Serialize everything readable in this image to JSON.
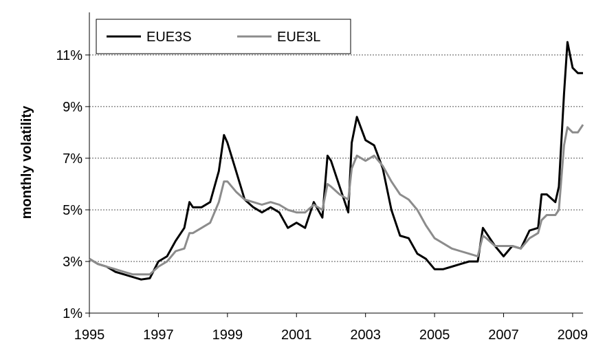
{
  "chart_data": {
    "type": "line",
    "y_label": "monthly volatility",
    "x": [
      1995.0,
      1995.25,
      1995.5,
      1995.75,
      1996.0,
      1996.25,
      1996.5,
      1996.75,
      1997.0,
      1997.25,
      1997.5,
      1997.75,
      1997.9,
      1998.0,
      1998.25,
      1998.5,
      1998.75,
      1998.9,
      1999.0,
      1999.25,
      1999.5,
      1999.75,
      2000.0,
      2000.25,
      2000.5,
      2000.75,
      2001.0,
      2001.25,
      2001.5,
      2001.75,
      2001.9,
      2002.0,
      2002.25,
      2002.5,
      2002.6,
      2002.75,
      2003.0,
      2003.25,
      2003.5,
      2003.75,
      2004.0,
      2004.25,
      2004.5,
      2004.75,
      2005.0,
      2005.25,
      2005.5,
      2005.75,
      2006.0,
      2006.25,
      2006.4,
      2006.5,
      2006.75,
      2007.0,
      2007.25,
      2007.5,
      2007.75,
      2008.0,
      2008.1,
      2008.25,
      2008.5,
      2008.6,
      2008.75,
      2008.85,
      2009.0,
      2009.15,
      2009.3
    ],
    "series": [
      {
        "name": "EUE3S",
        "color": "#000000",
        "values": [
          3.1,
          2.9,
          2.8,
          2.6,
          2.5,
          2.4,
          2.3,
          2.35,
          3.0,
          3.2,
          3.8,
          4.3,
          5.3,
          5.1,
          5.1,
          5.3,
          6.5,
          7.9,
          7.6,
          6.5,
          5.4,
          5.1,
          4.9,
          5.1,
          4.9,
          4.3,
          4.5,
          4.3,
          5.3,
          4.7,
          7.1,
          6.9,
          5.9,
          4.9,
          7.6,
          8.6,
          7.7,
          7.5,
          6.6,
          5.0,
          4.0,
          3.9,
          3.3,
          3.1,
          2.7,
          2.7,
          2.8,
          2.9,
          3.0,
          3.0,
          4.3,
          4.1,
          3.6,
          3.2,
          3.6,
          3.5,
          4.2,
          4.3,
          5.6,
          5.6,
          5.3,
          5.9,
          9.5,
          11.5,
          10.5,
          10.3,
          10.3
        ]
      },
      {
        "name": "EUE3L",
        "color": "#8c8c8c",
        "values": [
          3.1,
          2.9,
          2.8,
          2.7,
          2.6,
          2.5,
          2.5,
          2.5,
          2.8,
          3.0,
          3.4,
          3.5,
          4.1,
          4.1,
          4.3,
          4.5,
          5.3,
          6.1,
          6.1,
          5.7,
          5.4,
          5.3,
          5.2,
          5.3,
          5.2,
          5.0,
          4.9,
          4.9,
          5.2,
          5.0,
          6.0,
          5.9,
          5.6,
          5.4,
          6.6,
          7.1,
          6.9,
          7.1,
          6.7,
          6.1,
          5.6,
          5.4,
          5.0,
          4.4,
          3.9,
          3.7,
          3.5,
          3.4,
          3.3,
          3.2,
          4.0,
          3.9,
          3.6,
          3.6,
          3.6,
          3.5,
          3.9,
          4.1,
          4.6,
          4.8,
          4.8,
          5.0,
          7.5,
          8.2,
          8.0,
          8.0,
          8.3
        ]
      }
    ],
    "xlim": [
      1995,
      2009.3
    ],
    "xticks": [
      1995,
      1997,
      1999,
      2001,
      2003,
      2005,
      2007,
      2009
    ],
    "ylim": [
      1,
      12.65
    ],
    "yticks": [
      {
        "value": 1,
        "label": "1%"
      },
      {
        "value": 3,
        "label": "3%"
      },
      {
        "value": 5,
        "label": "5%"
      },
      {
        "value": 7,
        "label": "7%"
      },
      {
        "value": 9,
        "label": "9%"
      },
      {
        "value": 11,
        "label": "11%"
      }
    ],
    "grid": true,
    "legend": "top-left"
  }
}
